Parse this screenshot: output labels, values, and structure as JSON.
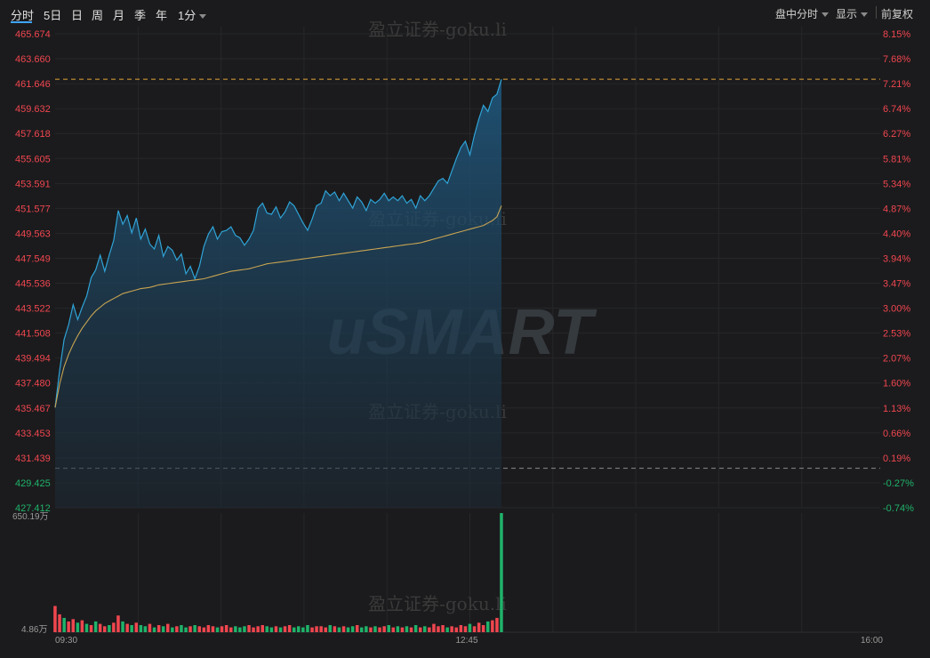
{
  "tabs": [
    {
      "label": "分时",
      "active": true
    },
    {
      "label": "5日"
    },
    {
      "label": "日"
    },
    {
      "label": "周"
    },
    {
      "label": "月"
    },
    {
      "label": "季"
    },
    {
      "label": "年"
    },
    {
      "label": "1分",
      "dropdown": true
    }
  ],
  "controls": {
    "session": "盘中分时",
    "display": "显示",
    "adjust": "前复权"
  },
  "watermark": {
    "text": "盈立证券-goku.li",
    "logo": "uSMART"
  },
  "colors": {
    "price_line": "#2fa3d6",
    "avg_line": "#c8a452",
    "up": "#f0464f",
    "down": "#1fb36a",
    "prev_close_line": "#8a8a8a",
    "high_line": "#e3a53b"
  },
  "chart_data": {
    "type": "line",
    "price_axis": [
      "465.674",
      "463.660",
      "461.646",
      "459.632",
      "457.618",
      "455.605",
      "453.591",
      "451.577",
      "449.563",
      "447.549",
      "445.536",
      "443.522",
      "441.508",
      "439.494",
      "437.480",
      "435.467",
      "433.453",
      "431.439",
      "429.425",
      "427.412"
    ],
    "pct_axis": [
      "8.15%",
      "7.68%",
      "7.21%",
      "6.74%",
      "6.27%",
      "5.81%",
      "5.34%",
      "4.87%",
      "4.40%",
      "3.94%",
      "3.47%",
      "3.00%",
      "2.53%",
      "2.07%",
      "1.60%",
      "1.13%",
      "0.66%",
      "0.19%",
      "-0.27%",
      "-0.74%"
    ],
    "ylim": [
      427.412,
      465.674
    ],
    "prev_close": 430.6,
    "high": 462.0,
    "x_labels": [
      "09:30",
      "12:45",
      "16:00"
    ],
    "volume_labels": {
      "max": "650.19万",
      "min": "4.86万"
    },
    "price": [
      435.5,
      438.5,
      441.0,
      442.2,
      443.8,
      442.6,
      443.6,
      444.5,
      446.0,
      446.6,
      447.8,
      446.5,
      447.8,
      449.0,
      451.4,
      450.3,
      451.0,
      449.6,
      450.8,
      449.1,
      449.9,
      448.7,
      448.3,
      449.4,
      447.7,
      448.5,
      448.2,
      447.4,
      447.9,
      446.3,
      446.9,
      445.9,
      446.9,
      448.5,
      449.5,
      450.1,
      449.1,
      449.7,
      449.8,
      450.1,
      449.4,
      449.2,
      448.6,
      449.1,
      449.8,
      451.6,
      452.0,
      451.2,
      451.1,
      451.7,
      450.8,
      451.3,
      452.1,
      451.8,
      451.1,
      450.4,
      449.8,
      450.7,
      451.8,
      452.0,
      453.0,
      452.6,
      452.9,
      452.2,
      452.8,
      452.2,
      451.6,
      452.5,
      452.1,
      451.4,
      452.3,
      452.0,
      452.3,
      452.8,
      452.2,
      452.5,
      452.2,
      452.6,
      452.0,
      452.3,
      451.6,
      452.6,
      452.2,
      452.6,
      453.2,
      453.8,
      454.0,
      453.6,
      454.6,
      455.6,
      456.5,
      457.0,
      455.9,
      457.5,
      458.8,
      459.9,
      459.4,
      460.5,
      460.8,
      462.0
    ],
    "avg": [
      435.5,
      437.4,
      438.8,
      439.8,
      440.6,
      441.3,
      441.9,
      442.4,
      442.9,
      443.3,
      443.6,
      443.9,
      444.1,
      444.3,
      444.5,
      444.7,
      444.8,
      444.9,
      445.0,
      445.1,
      445.15,
      445.2,
      445.3,
      445.4,
      445.45,
      445.5,
      445.55,
      445.6,
      445.65,
      445.7,
      445.75,
      445.8,
      445.85,
      445.9,
      446.0,
      446.1,
      446.2,
      446.3,
      446.4,
      446.5,
      446.55,
      446.6,
      446.65,
      446.7,
      446.8,
      446.9,
      447.0,
      447.1,
      447.15,
      447.2,
      447.25,
      447.3,
      447.35,
      447.4,
      447.45,
      447.5,
      447.55,
      447.6,
      447.65,
      447.7,
      447.75,
      447.8,
      447.85,
      447.9,
      447.95,
      448.0,
      448.05,
      448.1,
      448.15,
      448.2,
      448.25,
      448.3,
      448.35,
      448.4,
      448.45,
      448.5,
      448.55,
      448.6,
      448.65,
      448.7,
      448.75,
      448.8,
      448.9,
      449.0,
      449.1,
      449.2,
      449.3,
      449.4,
      449.5,
      449.6,
      449.7,
      449.8,
      449.9,
      450.0,
      450.1,
      450.2,
      450.4,
      450.6,
      450.9,
      451.8
    ],
    "volume": [
      22,
      15,
      12,
      9,
      11,
      8,
      10,
      7,
      6,
      9,
      7,
      5,
      6,
      8,
      14,
      9,
      7,
      6,
      8,
      6,
      5,
      7,
      4,
      6,
      5,
      7,
      4,
      5,
      6,
      4,
      5,
      6,
      5,
      4,
      6,
      5,
      4,
      5,
      6,
      4,
      5,
      4,
      5,
      6,
      4,
      5,
      6,
      5,
      4,
      5,
      4,
      5,
      6,
      4,
      5,
      4,
      6,
      4,
      5,
      5,
      4,
      6,
      5,
      4,
      5,
      4,
      5,
      6,
      4,
      5,
      4,
      5,
      4,
      5,
      6,
      4,
      5,
      4,
      5,
      4,
      6,
      4,
      5,
      4,
      7,
      5,
      6,
      4,
      5,
      4,
      6,
      5,
      7,
      5,
      8,
      6,
      9,
      10,
      12,
      100
    ],
    "volume_up": [
      1,
      1,
      0,
      1,
      1,
      0,
      1,
      0,
      1,
      0,
      1,
      1,
      0,
      1,
      1,
      0,
      1,
      0,
      1,
      0,
      0,
      1,
      0,
      1,
      0,
      1,
      0,
      1,
      0,
      0,
      1,
      0,
      1,
      1,
      1,
      1,
      0,
      1,
      1,
      1,
      0,
      0,
      0,
      1,
      1,
      1,
      1,
      0,
      0,
      1,
      0,
      1,
      1,
      0,
      0,
      0,
      0,
      1,
      1,
      1,
      1,
      0,
      1,
      0,
      1,
      0,
      0,
      1,
      0,
      0,
      1,
      0,
      1,
      1,
      0,
      1,
      0,
      1,
      0,
      1,
      0,
      1,
      0,
      1,
      1,
      1,
      1,
      0,
      1,
      1,
      1,
      1,
      0,
      1,
      1,
      1,
      0,
      1,
      1,
      0
    ]
  }
}
